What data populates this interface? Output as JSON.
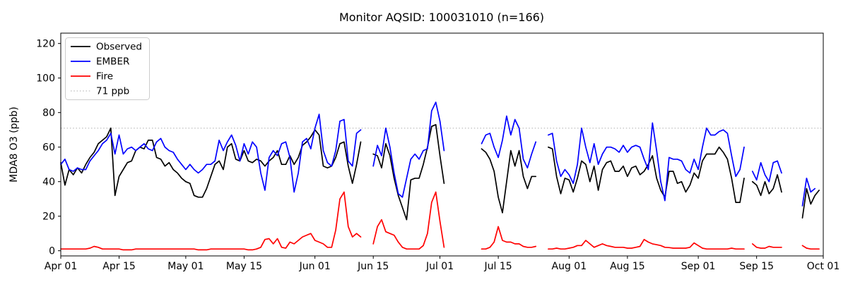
{
  "chart_data": {
    "type": "line",
    "title": "Monitor AQSID: 100031010 (n=166)",
    "xlabel": "",
    "ylabel": "MDA8 O3 (ppb)",
    "ylim": [
      -3,
      126
    ],
    "grid": false,
    "legend_position": "upper left",
    "x_domain_days": 183,
    "x_start": "Apr 01",
    "x_end": "Oct 01",
    "y_ticks": [
      0,
      20,
      40,
      60,
      80,
      100,
      120
    ],
    "x_ticks": [
      {
        "label": "Apr 01",
        "day": 0
      },
      {
        "label": "Apr 15",
        "day": 14
      },
      {
        "label": "May 01",
        "day": 30
      },
      {
        "label": "May 15",
        "day": 44
      },
      {
        "label": "Jun 01",
        "day": 61
      },
      {
        "label": "Jun 15",
        "day": 75
      },
      {
        "label": "Jul 01",
        "day": 91
      },
      {
        "label": "Jul 15",
        "day": 105
      },
      {
        "label": "Aug 01",
        "day": 122
      },
      {
        "label": "Aug 15",
        "day": 136
      },
      {
        "label": "Sep 01",
        "day": 153
      },
      {
        "label": "Sep 15",
        "day": 167
      },
      {
        "label": "Oct 01",
        "day": 183
      }
    ],
    "threshold": {
      "label": "71 ppb",
      "value": 71,
      "color": "#c8c8c8",
      "style": "dotted"
    },
    "series": [
      {
        "name": "Observed",
        "color": "#000000",
        "values": [
          51,
          38,
          47,
          44,
          48,
          45,
          50,
          54,
          57,
          62,
          64,
          66,
          71,
          32,
          43,
          47,
          51,
          52,
          58,
          60,
          59,
          64,
          64,
          54,
          53,
          49,
          51,
          47,
          45,
          42,
          40,
          39,
          32,
          31,
          31,
          36,
          43,
          50,
          52,
          47,
          60,
          62,
          53,
          52,
          58,
          52,
          51,
          53,
          52,
          49,
          52,
          54,
          58,
          50,
          50,
          55,
          50,
          54,
          61,
          63,
          66,
          70,
          67,
          49,
          48,
          49,
          54,
          62,
          63,
          49,
          39,
          50,
          63,
          null,
          null,
          56,
          55,
          48,
          62,
          55,
          42,
          32,
          25,
          18,
          41,
          42,
          42,
          50,
          60,
          72,
          73,
          55,
          39,
          null,
          null,
          null,
          null,
          null,
          null,
          null,
          null,
          59,
          57,
          53,
          46,
          31,
          22,
          40,
          58,
          49,
          58,
          43,
          36,
          43,
          43,
          null,
          null,
          60,
          59,
          43,
          33,
          42,
          41,
          34,
          42,
          52,
          50,
          40,
          49,
          35,
          47,
          51,
          52,
          46,
          46,
          49,
          43,
          48,
          49,
          44,
          46,
          50,
          55,
          42,
          35,
          31,
          46,
          46,
          39,
          40,
          34,
          38,
          45,
          42,
          52,
          56,
          56,
          56,
          60,
          57,
          53,
          42,
          28,
          28,
          42,
          null,
          40,
          38,
          32,
          40,
          33,
          36,
          44,
          34,
          null,
          null,
          null,
          null,
          19,
          36,
          27,
          32,
          35
        ]
      },
      {
        "name": "EMBER",
        "color": "#0000ff",
        "values": [
          50,
          53,
          47,
          46,
          48,
          47,
          47,
          52,
          55,
          58,
          62,
          64,
          68,
          56,
          67,
          56,
          59,
          60,
          58,
          60,
          62,
          59,
          58,
          63,
          65,
          60,
          58,
          57,
          53,
          50,
          47,
          50,
          47,
          45,
          47,
          50,
          50,
          52,
          64,
          58,
          63,
          67,
          61,
          52,
          62,
          56,
          63,
          60,
          45,
          35,
          54,
          58,
          55,
          62,
          63,
          54,
          34,
          45,
          63,
          65,
          59,
          71,
          79,
          58,
          51,
          49,
          58,
          75,
          76,
          52,
          49,
          68,
          70,
          null,
          null,
          49,
          61,
          55,
          71,
          60,
          45,
          33,
          31,
          42,
          53,
          56,
          53,
          58,
          59,
          81,
          86,
          75,
          58,
          null,
          null,
          null,
          null,
          null,
          null,
          null,
          null,
          62,
          67,
          68,
          60,
          54,
          64,
          78,
          67,
          76,
          71,
          53,
          48,
          56,
          63,
          null,
          null,
          67,
          68,
          52,
          43,
          47,
          44,
          39,
          50,
          71,
          60,
          51,
          62,
          50,
          56,
          60,
          60,
          59,
          57,
          61,
          57,
          60,
          61,
          60,
          53,
          47,
          74,
          58,
          40,
          29,
          54,
          53,
          53,
          52,
          47,
          45,
          53,
          47,
          60,
          71,
          67,
          67,
          69,
          70,
          68,
          55,
          43,
          47,
          60,
          null,
          46,
          41,
          51,
          44,
          40,
          51,
          52,
          45,
          null,
          null,
          null,
          null,
          26,
          42,
          34,
          36,
          null
        ]
      },
      {
        "name": "Fire",
        "color": "#ff0000",
        "values": [
          1,
          1,
          1,
          1,
          1,
          1,
          1,
          1.5,
          2.5,
          2,
          1,
          1,
          1,
          1,
          1,
          0.5,
          0.5,
          0.5,
          1,
          1,
          1,
          1,
          1,
          1,
          1,
          1,
          1,
          1,
          1,
          1,
          1,
          1,
          1,
          0.5,
          0.5,
          0.5,
          1,
          1,
          1,
          1,
          1,
          1,
          1,
          1,
          1,
          0.5,
          0.5,
          1,
          2,
          6.5,
          7,
          4,
          7,
          2,
          1.5,
          5,
          4,
          6,
          8,
          9,
          10,
          6,
          5,
          4,
          2,
          2,
          12,
          30,
          34,
          14,
          8,
          10,
          8,
          null,
          null,
          4,
          14,
          18,
          11,
          10,
          9,
          5,
          2,
          1,
          1,
          1,
          1,
          3,
          10,
          28,
          34,
          17,
          2,
          null,
          null,
          null,
          null,
          null,
          null,
          null,
          null,
          1,
          1,
          2,
          5,
          14,
          6,
          5,
          5,
          4,
          4,
          2.5,
          2,
          2,
          2.5,
          null,
          null,
          1,
          1,
          1.5,
          1,
          1,
          1.5,
          2,
          3,
          3,
          6,
          4,
          2,
          3,
          4,
          3,
          2.5,
          2,
          2,
          2,
          1.5,
          1.5,
          2,
          2.5,
          6.5,
          5,
          4,
          3.5,
          3,
          2,
          1.8,
          1.5,
          1.5,
          1.5,
          1.5,
          2,
          4.5,
          3,
          1.5,
          1,
          1,
          1,
          1,
          1,
          1,
          1.5,
          1,
          1,
          1,
          null,
          4,
          2,
          1.5,
          1.5,
          2.5,
          2,
          2,
          2,
          null,
          null,
          null,
          null,
          3,
          1.5,
          1,
          1,
          1
        ]
      }
    ]
  }
}
